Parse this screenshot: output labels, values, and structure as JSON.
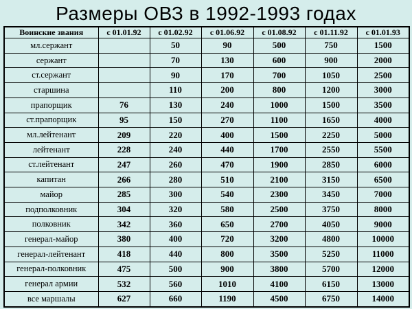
{
  "title": "Размеры ОВЗ в 1992-1993 годах",
  "colors": {
    "background": "#d5edeb",
    "border": "#000000",
    "text": "#000000"
  },
  "table": {
    "headers": [
      "Воинские звания",
      "с 01.01.92",
      "с 01.02.92",
      "с 01.06.92",
      "с 01.08.92",
      "с 01.11.92",
      "с 01.01.93"
    ],
    "rows": [
      {
        "rank": "мл.сержант",
        "values": [
          "",
          "50",
          "90",
          "500",
          "750",
          "1500"
        ]
      },
      {
        "rank": "сержант",
        "values": [
          "",
          "70",
          "130",
          "600",
          "900",
          "2000"
        ]
      },
      {
        "rank": "ст.сержант",
        "values": [
          "",
          "90",
          "170",
          "700",
          "1050",
          "2500"
        ]
      },
      {
        "rank": "старшина",
        "values": [
          "",
          "110",
          "200",
          "800",
          "1200",
          "3000"
        ]
      },
      {
        "rank": "прапорщик",
        "values": [
          "76",
          "130",
          "240",
          "1000",
          "1500",
          "3500"
        ]
      },
      {
        "rank": "ст.прапорщик",
        "values": [
          "95",
          "150",
          "270",
          "1100",
          "1650",
          "4000"
        ]
      },
      {
        "rank": "мл.лейтенант",
        "values": [
          "209",
          "220",
          "400",
          "1500",
          "2250",
          "5000"
        ]
      },
      {
        "rank": "лейтенант",
        "values": [
          "228",
          "240",
          "440",
          "1700",
          "2550",
          "5500"
        ]
      },
      {
        "rank": "ст.лейтенант",
        "values": [
          "247",
          "260",
          "470",
          "1900",
          "2850",
          "6000"
        ]
      },
      {
        "rank": "капитан",
        "values": [
          "266",
          "280",
          "510",
          "2100",
          "3150",
          "6500"
        ]
      },
      {
        "rank": "майор",
        "values": [
          "285",
          "300",
          "540",
          "2300",
          "3450",
          "7000"
        ]
      },
      {
        "rank": "подполковник",
        "values": [
          "304",
          "320",
          "580",
          "2500",
          "3750",
          "8000"
        ]
      },
      {
        "rank": "полковник",
        "values": [
          "342",
          "360",
          "650",
          "2700",
          "4050",
          "9000"
        ]
      },
      {
        "rank": "генерал-майор",
        "values": [
          "380",
          "400",
          "720",
          "3200",
          "4800",
          "10000"
        ]
      },
      {
        "rank": "генерал-лейтенант",
        "values": [
          "418",
          "440",
          "800",
          "3500",
          "5250",
          "11000"
        ]
      },
      {
        "rank": "генерал-полковник",
        "values": [
          "475",
          "500",
          "900",
          "3800",
          "5700",
          "12000"
        ]
      },
      {
        "rank": "генерал армии",
        "values": [
          "532",
          "560",
          "1010",
          "4100",
          "6150",
          "13000"
        ]
      },
      {
        "rank": "все маршалы",
        "values": [
          "627",
          "660",
          "1190",
          "4500",
          "6750",
          "14000"
        ]
      }
    ]
  }
}
